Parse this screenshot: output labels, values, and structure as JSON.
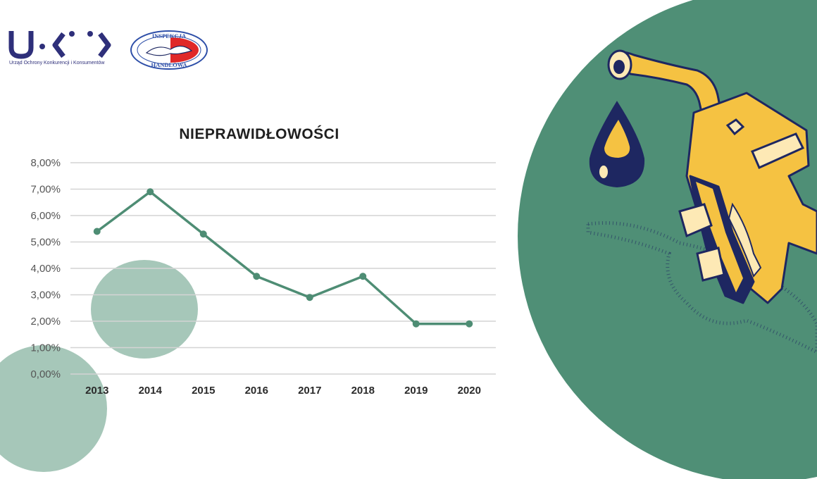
{
  "colors": {
    "accent_green": "#4f8f76",
    "light_green": "#a6c7b9",
    "line_green": "#4e8d74",
    "grid": "#d4d4d4",
    "navy": "#2e2f7a",
    "nozzle_yellow": "#f5c242",
    "nozzle_navy": "#1e2761"
  },
  "logos": {
    "uokik_caption": "Urząd Ochrony Konkurencji i Konsumentów",
    "ih_top": "INSPEKCJA",
    "ih_bottom": "HANDLOWA"
  },
  "illustration": {
    "icon": "fuel-nozzle-icon"
  },
  "chart_data": {
    "type": "line",
    "title": "NIEPRAWIDŁOWOŚCI",
    "categories": [
      "2013",
      "2014",
      "2015",
      "2016",
      "2017",
      "2018",
      "2019",
      "2020"
    ],
    "series": [
      {
        "values": [
          5.4,
          6.9,
          5.3,
          3.7,
          2.9,
          3.7,
          1.9,
          1.9
        ]
      }
    ],
    "yticks": [
      "0,00%",
      "1,00%",
      "2,00%",
      "3,00%",
      "4,00%",
      "5,00%",
      "6,00%",
      "7,00%",
      "8,00%"
    ],
    "ylim": [
      0,
      8
    ],
    "grid": true,
    "legend": "none"
  }
}
